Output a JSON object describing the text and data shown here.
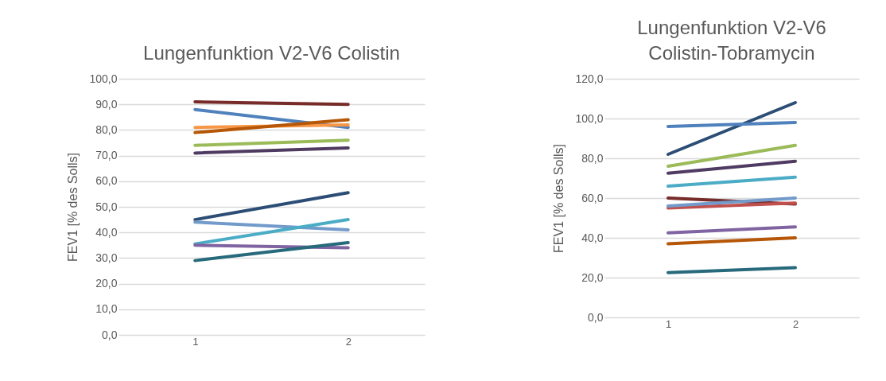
{
  "chart_data": [
    {
      "type": "line",
      "title": "Lungenfunktion V2-V6 Colistin",
      "ylabel": "FEV1 [% des Solls]",
      "categories": [
        "1",
        "2"
      ],
      "ylim": [
        0,
        100
      ],
      "yticks": [
        {
          "value": 0,
          "label": "0,0"
        },
        {
          "value": 10,
          "label": "10,0"
        },
        {
          "value": 20,
          "label": "20,0"
        },
        {
          "value": 30,
          "label": "30,0"
        },
        {
          "value": 40,
          "label": "40,0"
        },
        {
          "value": 50,
          "label": "50,0"
        },
        {
          "value": 60,
          "label": "60,0"
        },
        {
          "value": 70,
          "label": "70,0"
        },
        {
          "value": 80,
          "label": "80,0"
        },
        {
          "value": 90,
          "label": "90,0"
        },
        {
          "value": 100,
          "label": "100,0"
        }
      ],
      "grid": "y",
      "legend": false,
      "marker": "none",
      "line_style": "solid",
      "series": [
        {
          "color": "#772c2a",
          "values": [
            91,
            90
          ]
        },
        {
          "color": "#4f81bd",
          "values": [
            88,
            81
          ]
        },
        {
          "color": "#f79646",
          "values": [
            81,
            82
          ]
        },
        {
          "color": "#b65708",
          "values": [
            79,
            84
          ]
        },
        {
          "color": "#9bbb59",
          "values": [
            74,
            76
          ]
        },
        {
          "color": "#4f3b62",
          "values": [
            71,
            73
          ]
        },
        {
          "color": "#2c4d75",
          "values": [
            45,
            55.5
          ]
        },
        {
          "color": "#729aca",
          "values": [
            44,
            41
          ]
        },
        {
          "color": "#4bacc6",
          "values": [
            35.5,
            45
          ]
        },
        {
          "color": "#8064a2",
          "values": [
            35,
            34
          ]
        },
        {
          "color": "#276a7c",
          "values": [
            29,
            36
          ]
        }
      ]
    },
    {
      "type": "line",
      "title": "Lungenfunktion V2-V6\nColistin-Tobramycin",
      "ylabel": "FEV1 [% des Solls]",
      "categories": [
        "1",
        "2"
      ],
      "ylim": [
        0,
        120
      ],
      "yticks": [
        {
          "value": 0,
          "label": "0,0"
        },
        {
          "value": 20,
          "label": "20,0"
        },
        {
          "value": 40,
          "label": "40,0"
        },
        {
          "value": 60,
          "label": "60,0"
        },
        {
          "value": 80,
          "label": "80,0"
        },
        {
          "value": 100,
          "label": "100,0"
        },
        {
          "value": 120,
          "label": "120,0"
        }
      ],
      "grid": "y",
      "legend": false,
      "marker": "none",
      "line_style": "solid",
      "series": [
        {
          "color": "#2c4d75",
          "values": [
            82,
            108
          ]
        },
        {
          "color": "#4f81bd",
          "values": [
            96,
            98
          ]
        },
        {
          "color": "#9bbb59",
          "values": [
            76,
            86.5
          ]
        },
        {
          "color": "#4f3b62",
          "values": [
            72.5,
            78.5
          ]
        },
        {
          "color": "#4bacc6",
          "values": [
            66,
            70.5
          ]
        },
        {
          "color": "#772c2a",
          "values": [
            60,
            57
          ]
        },
        {
          "color": "#c0504d",
          "values": [
            55,
            57.5
          ]
        },
        {
          "color": "#729aca",
          "values": [
            56,
            60
          ]
        },
        {
          "color": "#8064a2",
          "values": [
            42.5,
            45.5
          ]
        },
        {
          "color": "#b65708",
          "values": [
            37,
            40
          ]
        },
        {
          "color": "#276a7c",
          "values": [
            22.5,
            25
          ]
        }
      ]
    }
  ]
}
